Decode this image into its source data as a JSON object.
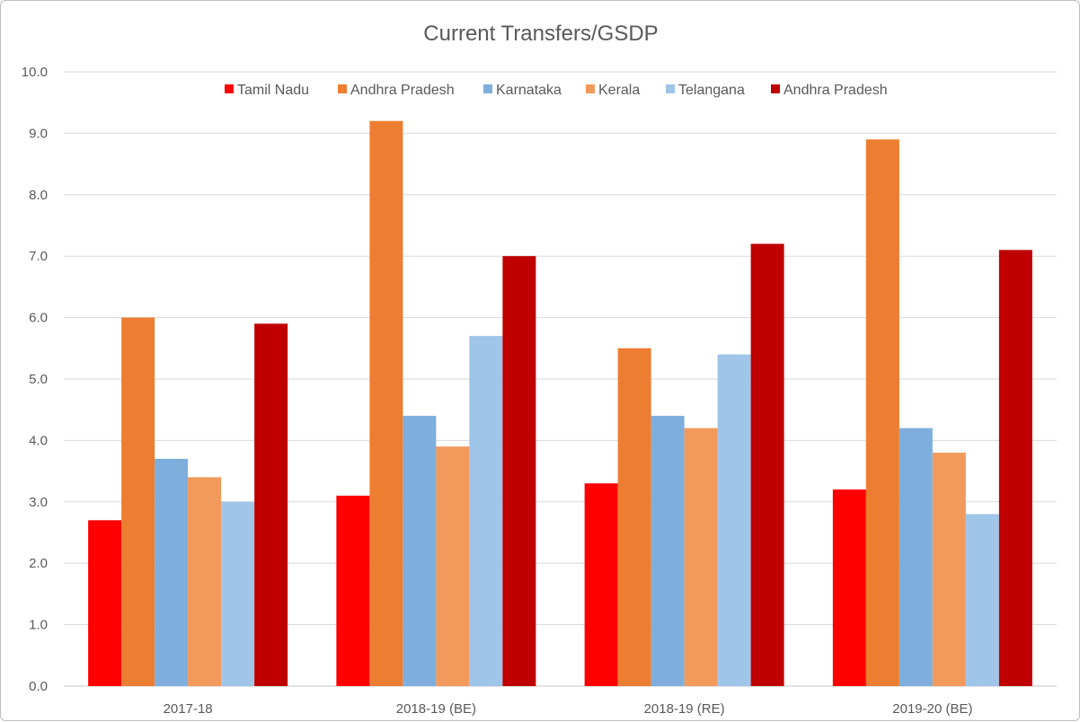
{
  "chart_data": {
    "type": "bar",
    "title": "Current Transfers/GSDP",
    "categories": [
      "2017-18",
      "2018-19 (BE)",
      "2018-19 (RE)",
      "2019-20 (BE)"
    ],
    "y_ticks": [
      "0.0",
      "1.0",
      "2.0",
      "3.0",
      "4.0",
      "5.0",
      "6.0",
      "7.0",
      "8.0",
      "9.0",
      "10.0"
    ],
    "ylim": [
      0,
      10
    ],
    "grid": true,
    "legend_position": "top",
    "series": [
      {
        "name": "Tamil Nadu",
        "color": "#ff0000",
        "values": [
          2.7,
          3.1,
          3.3,
          3.2
        ]
      },
      {
        "name": "Andhra Pradesh",
        "color": "#ed7d31",
        "values": [
          6.0,
          9.2,
          5.5,
          8.9
        ]
      },
      {
        "name": "Karnataka",
        "color": "#7eaedc",
        "values": [
          3.7,
          4.4,
          4.4,
          4.2
        ]
      },
      {
        "name": "Kerala",
        "color": "#f19a5c",
        "values": [
          3.4,
          3.9,
          4.2,
          3.8
        ]
      },
      {
        "name": "Telangana",
        "color": "#9fc5e8",
        "values": [
          3.0,
          5.7,
          5.4,
          2.8
        ]
      },
      {
        "name": "Andhra Pradesh",
        "color": "#c00000",
        "values": [
          5.9,
          7.0,
          7.2,
          7.1
        ]
      }
    ]
  }
}
